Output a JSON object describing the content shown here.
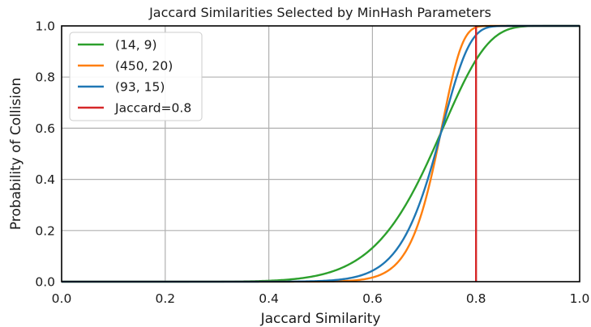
{
  "chart_data": {
    "type": "line",
    "title": "Jaccard Similarities Selected by MinHash Parameters",
    "xlabel": "Jaccard Similarity",
    "ylabel": "Probability of Collision",
    "xlim": [
      0.0,
      1.0
    ],
    "ylim": [
      0.0,
      1.0
    ],
    "xticks": [
      "0.0",
      "0.2",
      "0.4",
      "0.6",
      "0.8",
      "1.0"
    ],
    "yticks": [
      "0.0",
      "0.2",
      "0.4",
      "0.6",
      "0.8",
      "1.0"
    ],
    "grid": true,
    "legend_position": "top-left",
    "formula": "1 - (1 - s^r)^b",
    "series": [
      {
        "name": "(14, 9)",
        "bands": 14,
        "rows": 9,
        "color": "#2ca02c"
      },
      {
        "name": "(450, 20)",
        "bands": 450,
        "rows": 20,
        "color": "#ff7f0e"
      },
      {
        "name": "(93, 15)",
        "bands": 93,
        "rows": 15,
        "color": "#1f77b4"
      }
    ],
    "threshold": {
      "name": "Jaccard=0.8",
      "x": 0.8,
      "color": "#d62728"
    }
  }
}
